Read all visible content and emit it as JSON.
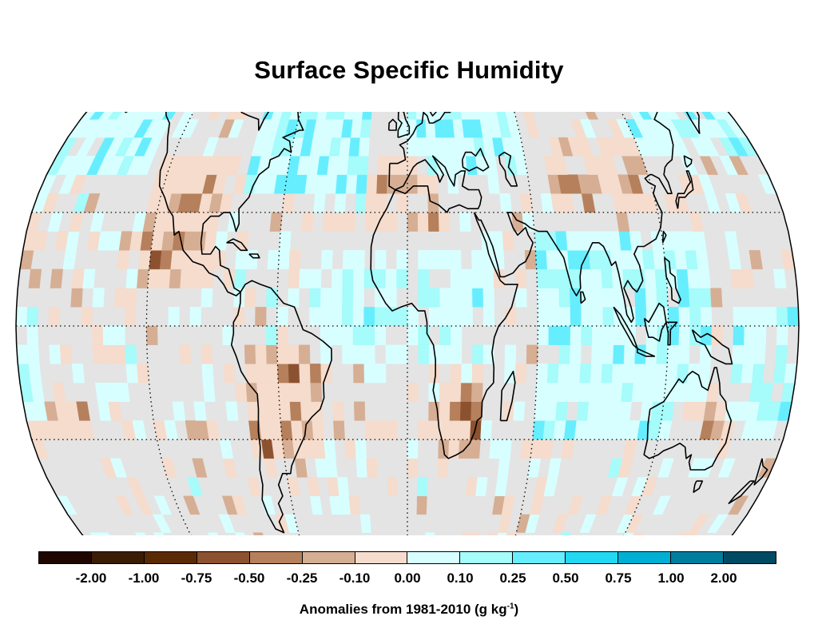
{
  "title": "Surface Specific Humidity",
  "units": {
    "label_main": "Anomalies from 1981-2010 (g kg",
    "label_sup": "-1",
    "label_end": ")"
  },
  "colorbar": {
    "colors": [
      "#1f0700",
      "#3b1c05",
      "#5a2a05",
      "#8c5230",
      "#b5805b",
      "#d6ae94",
      "#f5dccd",
      "#d8ffff",
      "#a6fbfb",
      "#66eeff",
      "#22d8f2",
      "#00b0d4",
      "#007e9e",
      "#004a63"
    ],
    "tick_labels": [
      "-2.00",
      "-1.00",
      "-0.75",
      "-0.50",
      "-0.25",
      "-0.10",
      "0.00",
      "0.10",
      "0.25",
      "0.50",
      "0.75",
      "1.00",
      "2.00"
    ]
  },
  "map": {
    "projection": "Robinson",
    "ocean_color": "#e4e4e4",
    "graticule_latitudes": [
      60,
      30,
      0,
      -30,
      -60
    ],
    "graticule_longitudes": [
      -120,
      -60,
      0,
      60,
      120
    ]
  }
}
